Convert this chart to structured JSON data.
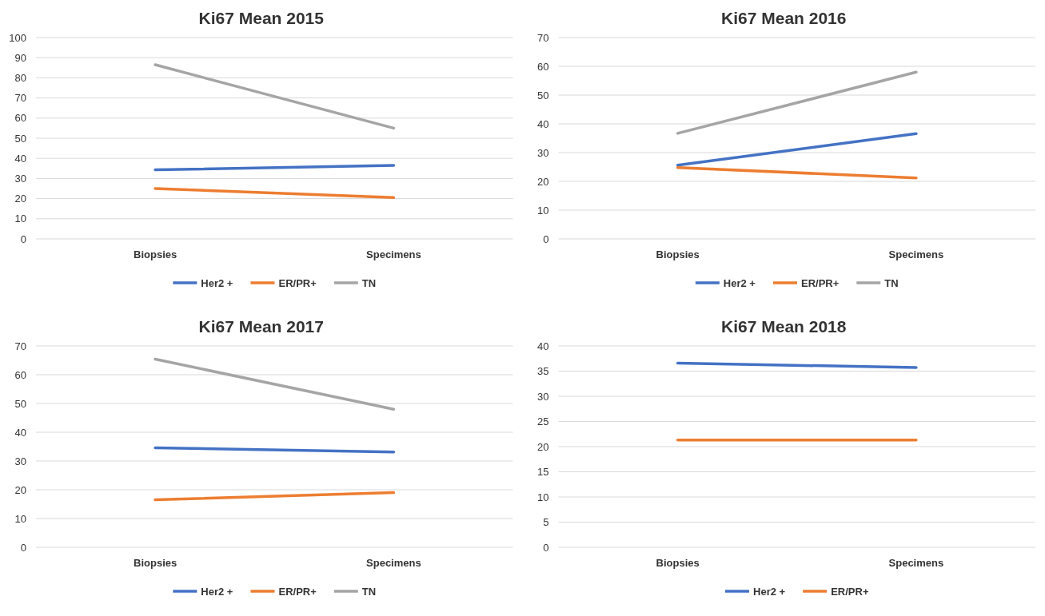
{
  "chart_data": [
    {
      "type": "line",
      "title": "Ki67 Mean 2015",
      "categories": [
        "Biopsies",
        "Specimens"
      ],
      "ylim": [
        0,
        100
      ],
      "yticks": [
        0,
        10,
        20,
        30,
        40,
        50,
        60,
        70,
        80,
        90,
        100
      ],
      "grid": "y",
      "legend": "bottom",
      "marker": "none",
      "series": [
        {
          "name": "Her2 +",
          "color": "#4472c4",
          "values": [
            34.3,
            36.5
          ]
        },
        {
          "name": "ER/PR+",
          "color": "#ed7d31",
          "values": [
            25,
            20.5
          ]
        },
        {
          "name": "TN",
          "color": "#a5a5a5",
          "values": [
            86.5,
            55
          ]
        }
      ]
    },
    {
      "type": "line",
      "title": "Ki67 Mean 2016",
      "categories": [
        "Biopsies",
        "Specimens"
      ],
      "ylim": [
        0,
        70
      ],
      "yticks": [
        0,
        10,
        20,
        30,
        40,
        50,
        60,
        70
      ],
      "grid": "y",
      "legend": "bottom",
      "marker": "none",
      "series": [
        {
          "name": "Her2 +",
          "color": "#4472c4",
          "values": [
            25.6,
            36.6
          ]
        },
        {
          "name": "ER/PR+",
          "color": "#ed7d31",
          "values": [
            24.8,
            21.2
          ]
        },
        {
          "name": "TN",
          "color": "#a5a5a5",
          "values": [
            36.7,
            58
          ]
        }
      ]
    },
    {
      "type": "line",
      "title": "Ki67 Mean 2017",
      "categories": [
        "Biopsies",
        "Specimens"
      ],
      "ylim": [
        0,
        70
      ],
      "yticks": [
        0,
        10,
        20,
        30,
        40,
        50,
        60,
        70
      ],
      "grid": "y",
      "legend": "bottom",
      "marker": "none",
      "series": [
        {
          "name": "Her2 +",
          "color": "#4472c4",
          "values": [
            34.6,
            33.1
          ]
        },
        {
          "name": "ER/PR+",
          "color": "#ed7d31",
          "values": [
            16.5,
            19
          ]
        },
        {
          "name": "TN",
          "color": "#a5a5a5",
          "values": [
            65.4,
            48
          ]
        }
      ]
    },
    {
      "type": "line",
      "title": "Ki67 Mean 2018",
      "categories": [
        "Biopsies",
        "Specimens"
      ],
      "ylim": [
        0,
        40
      ],
      "yticks": [
        0,
        5,
        10,
        15,
        20,
        25,
        30,
        35,
        40
      ],
      "grid": "y",
      "legend": "bottom",
      "marker": "none",
      "series": [
        {
          "name": "Her2 +",
          "color": "#4472c4",
          "values": [
            36.6,
            35.7
          ]
        },
        {
          "name": "ER/PR+",
          "color": "#ed7d31",
          "values": [
            21.3,
            21.3
          ]
        }
      ]
    }
  ]
}
